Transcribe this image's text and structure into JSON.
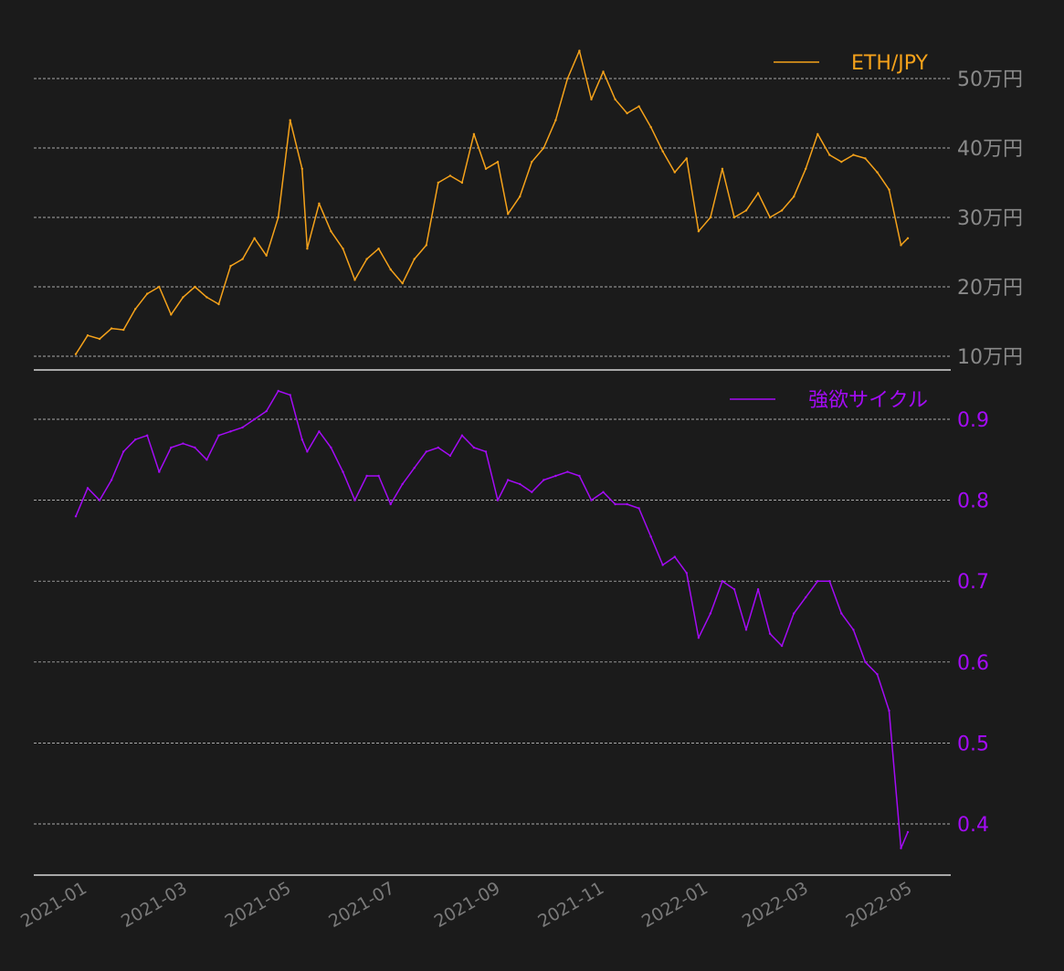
{
  "chart_data": [
    {
      "type": "line",
      "name": "price-panel",
      "legend": "ETH/JPY",
      "legend_position": "top-right",
      "color": "#f5a21b",
      "tick_color": "#8a8a8a",
      "ylim": [
        98000,
        555000
      ],
      "y_ticks": [
        {
          "value": 100000,
          "label": "10万円"
        },
        {
          "value": 200000,
          "label": "20万円"
        },
        {
          "value": 300000,
          "label": "30万円"
        },
        {
          "value": 400000,
          "label": "40万円"
        },
        {
          "value": 500000,
          "label": "50万円"
        }
      ],
      "x": [
        "2020-12-27",
        "2021-01-03",
        "2021-01-10",
        "2021-01-17",
        "2021-01-24",
        "2021-01-31",
        "2021-02-07",
        "2021-02-14",
        "2021-02-21",
        "2021-02-28",
        "2021-03-07",
        "2021-03-14",
        "2021-03-21",
        "2021-03-28",
        "2021-04-04",
        "2021-04-11",
        "2021-04-18",
        "2021-04-25",
        "2021-05-02",
        "2021-05-09",
        "2021-05-12",
        "2021-05-19",
        "2021-05-26",
        "2021-06-02",
        "2021-06-09",
        "2021-06-16",
        "2021-06-23",
        "2021-06-30",
        "2021-07-07",
        "2021-07-14",
        "2021-07-21",
        "2021-07-28",
        "2021-08-04",
        "2021-08-11",
        "2021-08-18",
        "2021-08-25",
        "2021-09-01",
        "2021-09-07",
        "2021-09-14",
        "2021-09-21",
        "2021-09-28",
        "2021-10-05",
        "2021-10-12",
        "2021-10-19",
        "2021-10-26",
        "2021-11-02",
        "2021-11-09",
        "2021-11-16",
        "2021-11-23",
        "2021-11-30",
        "2021-12-07",
        "2021-12-14",
        "2021-12-21",
        "2021-12-28",
        "2022-01-04",
        "2022-01-11",
        "2022-01-18",
        "2022-01-25",
        "2022-02-01",
        "2022-02-08",
        "2022-02-15",
        "2022-02-22",
        "2022-03-01",
        "2022-03-08",
        "2022-03-15",
        "2022-03-22",
        "2022-03-29",
        "2022-04-05",
        "2022-04-12",
        "2022-04-19",
        "2022-04-26",
        "2022-04-30"
      ],
      "values": [
        103000,
        130000,
        125000,
        140000,
        138000,
        168000,
        190000,
        200000,
        160000,
        185000,
        200000,
        185000,
        175000,
        230000,
        240000,
        270000,
        245000,
        300000,
        440000,
        370000,
        255000,
        320000,
        280000,
        255000,
        210000,
        240000,
        255000,
        225000,
        205000,
        240000,
        260000,
        350000,
        360000,
        350000,
        420000,
        370000,
        380000,
        305000,
        330000,
        380000,
        400000,
        440000,
        500000,
        540000,
        470000,
        510000,
        470000,
        450000,
        460000,
        430000,
        395000,
        365000,
        385000,
        280000,
        300000,
        370000,
        300000,
        310000,
        335000,
        300000,
        310000,
        330000,
        370000,
        420000,
        390000,
        380000,
        390000,
        385000,
        365000,
        340000,
        260000,
        270000
      ]
    },
    {
      "type": "line",
      "name": "cycle-panel",
      "legend": "強欲サイクル",
      "legend_position": "top-right",
      "color": "#a40bf5",
      "tick_color": "#a40bf5",
      "ylim": [
        0.335,
        0.95
      ],
      "y_ticks": [
        {
          "value": 0.4,
          "label": "0.4"
        },
        {
          "value": 0.5,
          "label": "0.5"
        },
        {
          "value": 0.6,
          "label": "0.6"
        },
        {
          "value": 0.7,
          "label": "0.7"
        },
        {
          "value": 0.8,
          "label": "0.8"
        },
        {
          "value": 0.9,
          "label": "0.9"
        }
      ],
      "x": [
        "2020-12-27",
        "2021-01-03",
        "2021-01-10",
        "2021-01-17",
        "2021-01-24",
        "2021-01-31",
        "2021-02-07",
        "2021-02-14",
        "2021-02-21",
        "2021-02-28",
        "2021-03-07",
        "2021-03-14",
        "2021-03-21",
        "2021-03-28",
        "2021-04-04",
        "2021-04-11",
        "2021-04-18",
        "2021-04-25",
        "2021-05-02",
        "2021-05-09",
        "2021-05-12",
        "2021-05-19",
        "2021-05-26",
        "2021-06-02",
        "2021-06-09",
        "2021-06-16",
        "2021-06-23",
        "2021-06-30",
        "2021-07-07",
        "2021-07-14",
        "2021-07-21",
        "2021-07-28",
        "2021-08-04",
        "2021-08-11",
        "2021-08-18",
        "2021-08-25",
        "2021-09-01",
        "2021-09-07",
        "2021-09-14",
        "2021-09-21",
        "2021-09-28",
        "2021-10-05",
        "2021-10-12",
        "2021-10-19",
        "2021-10-26",
        "2021-11-02",
        "2021-11-09",
        "2021-11-16",
        "2021-11-23",
        "2021-11-30",
        "2021-12-07",
        "2021-12-14",
        "2021-12-21",
        "2021-12-28",
        "2022-01-04",
        "2022-01-11",
        "2022-01-18",
        "2022-01-25",
        "2022-02-01",
        "2022-02-08",
        "2022-02-15",
        "2022-02-22",
        "2022-03-01",
        "2022-03-08",
        "2022-03-15",
        "2022-03-22",
        "2022-03-29",
        "2022-04-05",
        "2022-04-12",
        "2022-04-19",
        "2022-04-26",
        "2022-04-30"
      ],
      "values": [
        0.78,
        0.815,
        0.8,
        0.825,
        0.86,
        0.875,
        0.88,
        0.835,
        0.865,
        0.87,
        0.865,
        0.85,
        0.88,
        0.885,
        0.89,
        0.9,
        0.91,
        0.935,
        0.93,
        0.875,
        0.86,
        0.885,
        0.865,
        0.835,
        0.8,
        0.83,
        0.83,
        0.795,
        0.82,
        0.84,
        0.86,
        0.865,
        0.855,
        0.88,
        0.865,
        0.86,
        0.8,
        0.825,
        0.82,
        0.81,
        0.825,
        0.83,
        0.835,
        0.83,
        0.8,
        0.81,
        0.795,
        0.795,
        0.79,
        0.755,
        0.72,
        0.73,
        0.71,
        0.63,
        0.66,
        0.7,
        0.69,
        0.64,
        0.69,
        0.635,
        0.62,
        0.66,
        0.68,
        0.7,
        0.7,
        0.66,
        0.64,
        0.6,
        0.585,
        0.54,
        0.37,
        0.39
      ]
    }
  ],
  "x_axis": {
    "tick_dates": [
      "2021-01-01",
      "2021-03-01",
      "2021-05-01",
      "2021-07-01",
      "2021-09-01",
      "2021-11-01",
      "2022-01-01",
      "2022-03-01",
      "2022-05-01"
    ],
    "tick_labels": [
      "2021-01",
      "2021-03",
      "2021-05",
      "2021-07",
      "2021-09",
      "2021-11",
      "2022-01",
      "2022-03",
      "2022-05"
    ]
  }
}
